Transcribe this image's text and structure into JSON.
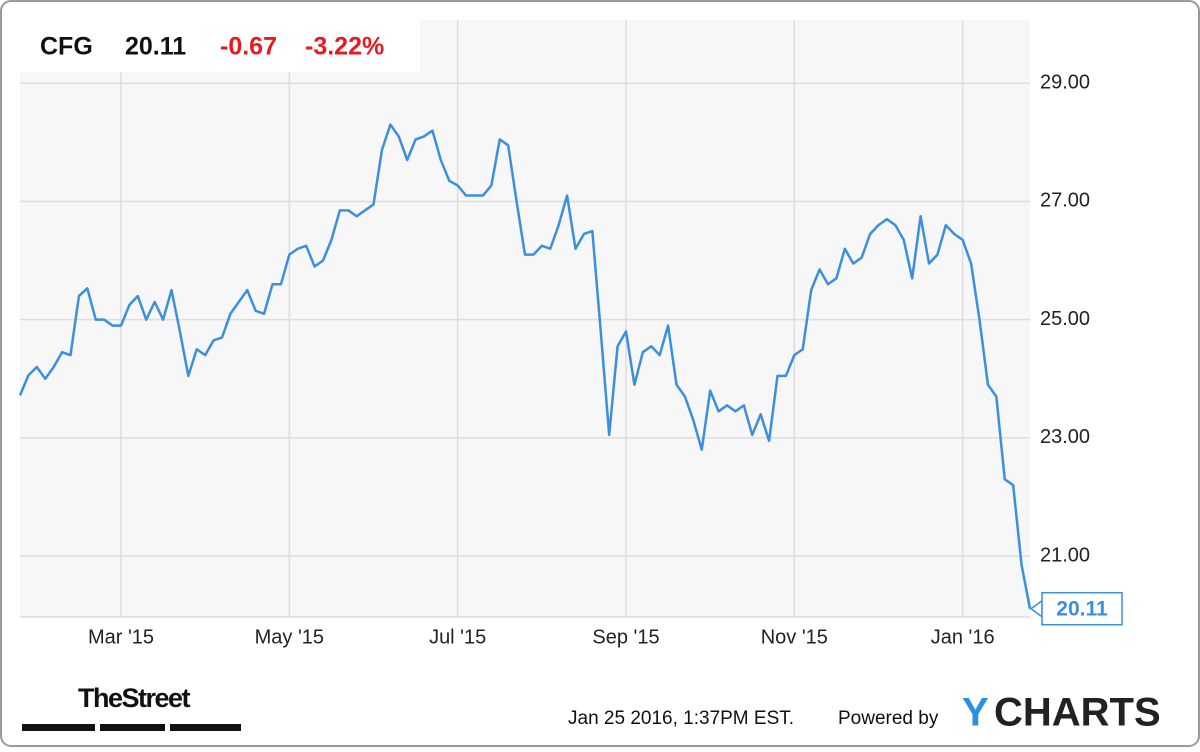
{
  "chart_data": {
    "type": "line",
    "header": {
      "symbol": "CFG",
      "price": "20.11",
      "change": "-0.67",
      "change_pct": "-3.22%"
    },
    "end_label": "20.11",
    "categories": [
      null,
      null,
      null,
      null,
      null,
      null,
      null,
      null,
      null,
      null,
      null,
      null,
      "Mar '15",
      null,
      null,
      null,
      null,
      null,
      null,
      null,
      null,
      null,
      null,
      null,
      null,
      null,
      null,
      null,
      null,
      null,
      null,
      null,
      "May '15",
      null,
      null,
      null,
      null,
      null,
      null,
      null,
      null,
      null,
      null,
      null,
      null,
      null,
      null,
      null,
      null,
      null,
      null,
      null,
      "Jul '15",
      null,
      null,
      null,
      null,
      null,
      null,
      null,
      null,
      null,
      null,
      null,
      null,
      null,
      null,
      null,
      null,
      null,
      null,
      null,
      "Sep '15",
      null,
      null,
      null,
      null,
      null,
      null,
      null,
      null,
      null,
      null,
      null,
      null,
      null,
      null,
      null,
      null,
      null,
      null,
      null,
      "Nov '15",
      null,
      null,
      null,
      null,
      null,
      null,
      null,
      null,
      null,
      null,
      null,
      null,
      null,
      null,
      null,
      null,
      null,
      null,
      null,
      "Jan '16",
      null,
      null,
      null,
      null,
      null,
      null,
      null,
      null
    ],
    "values": [
      23.72,
      24.06,
      24.2,
      24.0,
      24.2,
      24.45,
      24.4,
      25.4,
      25.53,
      25.0,
      25.0,
      24.9,
      24.9,
      25.25,
      25.4,
      25.0,
      25.3,
      25.0,
      25.5,
      24.8,
      24.05,
      24.5,
      24.4,
      24.65,
      24.7,
      25.1,
      25.3,
      25.5,
      25.15,
      25.1,
      25.6,
      25.6,
      26.1,
      26.2,
      26.25,
      25.9,
      26.0,
      26.35,
      26.85,
      26.85,
      26.75,
      26.85,
      26.95,
      27.87,
      28.3,
      28.1,
      27.7,
      28.05,
      28.1,
      28.2,
      27.7,
      27.35,
      27.27,
      27.1,
      27.1,
      27.1,
      27.27,
      28.05,
      27.95,
      27.0,
      26.1,
      26.1,
      26.25,
      26.2,
      26.6,
      27.1,
      26.2,
      26.45,
      26.5,
      24.8,
      23.05,
      24.55,
      24.8,
      23.9,
      24.45,
      24.55,
      24.4,
      24.9,
      23.9,
      23.7,
      23.3,
      22.8,
      23.8,
      23.45,
      23.55,
      23.45,
      23.55,
      23.05,
      23.4,
      22.95,
      24.05,
      24.05,
      24.4,
      24.5,
      25.5,
      25.85,
      25.6,
      25.7,
      26.2,
      25.95,
      26.05,
      26.45,
      26.6,
      26.7,
      26.6,
      26.35,
      25.7,
      26.75,
      25.95,
      26.1,
      26.6,
      26.45,
      26.35,
      25.95,
      25.0,
      23.9,
      23.7,
      22.3,
      22.2,
      20.85,
      20.11
    ],
    "color": "#3a8fe0",
    "ylim": [
      19.97,
      30.07
    ],
    "yticks": [
      {
        "value": 21,
        "label": "21.00"
      },
      {
        "value": 23,
        "label": "23.00"
      },
      {
        "value": 25,
        "label": "25.00"
      },
      {
        "value": 27,
        "label": "27.00"
      },
      {
        "value": 29,
        "label": "29.00"
      }
    ],
    "grid": true,
    "footer": {
      "source": "TheStreet",
      "timestamp": "Jan 25 2016, 1:37PM EST.",
      "powered": "Powered by",
      "brand_y": "Y",
      "brand_rest": "CHARTS"
    }
  }
}
